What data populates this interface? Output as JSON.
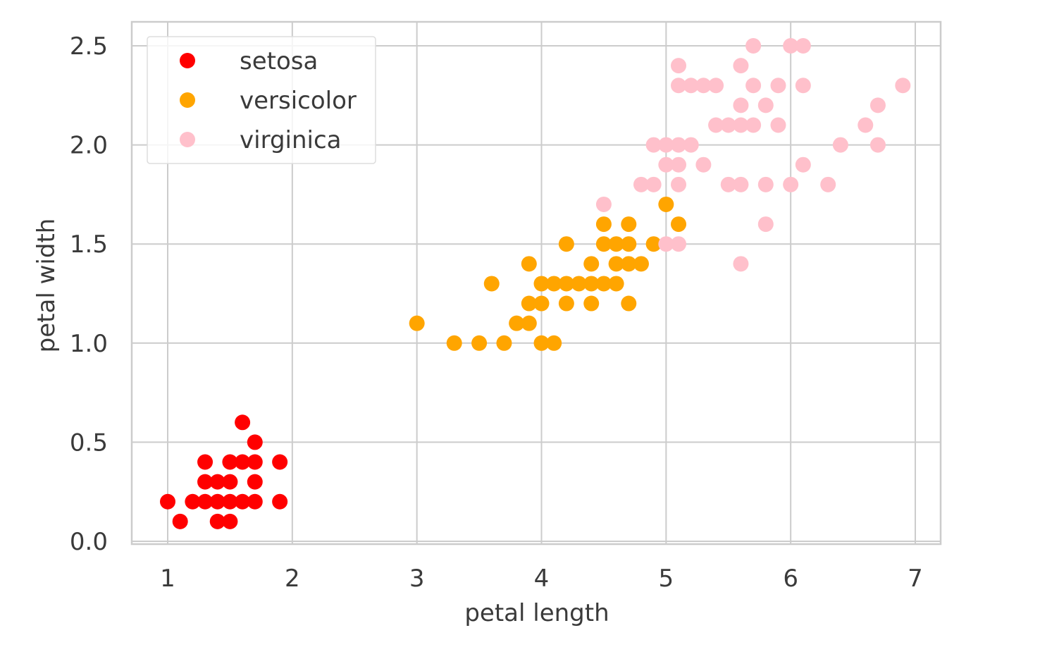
{
  "chart_data": {
    "type": "scatter",
    "title": "",
    "xlabel": "petal length",
    "ylabel": "petal width",
    "xlim": [
      0.7,
      7.2
    ],
    "ylim": [
      0.0,
      2.6
    ],
    "xticks": [
      1,
      2,
      3,
      4,
      5,
      6,
      7
    ],
    "yticks": [
      0.0,
      0.5,
      1.0,
      1.5,
      2.0,
      2.5
    ],
    "xtick_labels": [
      "1",
      "2",
      "3",
      "4",
      "5",
      "6",
      "7"
    ],
    "ytick_labels": [
      "0.0",
      "0.5",
      "1.0",
      "1.5",
      "2.0",
      "2.5"
    ],
    "grid": true,
    "legend_position": "top-left",
    "series": [
      {
        "name": "setosa",
        "color": "#ff0000",
        "points": [
          [
            1.0,
            0.2
          ],
          [
            1.1,
            0.1
          ],
          [
            1.2,
            0.2
          ],
          [
            1.3,
            0.2
          ],
          [
            1.3,
            0.3
          ],
          [
            1.3,
            0.4
          ],
          [
            1.4,
            0.1
          ],
          [
            1.4,
            0.2
          ],
          [
            1.4,
            0.3
          ],
          [
            1.5,
            0.1
          ],
          [
            1.5,
            0.2
          ],
          [
            1.5,
            0.3
          ],
          [
            1.5,
            0.4
          ],
          [
            1.6,
            0.2
          ],
          [
            1.6,
            0.4
          ],
          [
            1.6,
            0.6
          ],
          [
            1.7,
            0.2
          ],
          [
            1.7,
            0.3
          ],
          [
            1.7,
            0.4
          ],
          [
            1.7,
            0.5
          ],
          [
            1.9,
            0.2
          ],
          [
            1.9,
            0.4
          ]
        ]
      },
      {
        "name": "versicolor",
        "color": "#ffa500",
        "points": [
          [
            3.0,
            1.1
          ],
          [
            3.3,
            1.0
          ],
          [
            3.5,
            1.0
          ],
          [
            3.6,
            1.3
          ],
          [
            3.7,
            1.0
          ],
          [
            3.8,
            1.1
          ],
          [
            3.9,
            1.1
          ],
          [
            3.9,
            1.2
          ],
          [
            3.9,
            1.4
          ],
          [
            4.0,
            1.0
          ],
          [
            4.0,
            1.2
          ],
          [
            4.0,
            1.3
          ],
          [
            4.1,
            1.0
          ],
          [
            4.1,
            1.3
          ],
          [
            4.2,
            1.2
          ],
          [
            4.2,
            1.3
          ],
          [
            4.2,
            1.5
          ],
          [
            4.3,
            1.3
          ],
          [
            4.4,
            1.2
          ],
          [
            4.4,
            1.3
          ],
          [
            4.4,
            1.4
          ],
          [
            4.5,
            1.3
          ],
          [
            4.5,
            1.5
          ],
          [
            4.5,
            1.6
          ],
          [
            4.6,
            1.3
          ],
          [
            4.6,
            1.4
          ],
          [
            4.6,
            1.5
          ],
          [
            4.7,
            1.2
          ],
          [
            4.7,
            1.4
          ],
          [
            4.7,
            1.5
          ],
          [
            4.7,
            1.6
          ],
          [
            4.8,
            1.4
          ],
          [
            4.9,
            1.5
          ],
          [
            5.0,
            1.7
          ],
          [
            5.1,
            1.6
          ]
        ]
      },
      {
        "name": "virginica",
        "color": "#ffc0cb",
        "points": [
          [
            4.5,
            1.7
          ],
          [
            4.8,
            1.8
          ],
          [
            4.9,
            1.8
          ],
          [
            4.9,
            2.0
          ],
          [
            5.0,
            1.5
          ],
          [
            5.0,
            1.9
          ],
          [
            5.0,
            2.0
          ],
          [
            5.1,
            1.5
          ],
          [
            5.1,
            1.8
          ],
          [
            5.1,
            1.9
          ],
          [
            5.1,
            2.0
          ],
          [
            5.1,
            2.3
          ],
          [
            5.1,
            2.4
          ],
          [
            5.2,
            2.0
          ],
          [
            5.2,
            2.3
          ],
          [
            5.3,
            1.9
          ],
          [
            5.3,
            2.3
          ],
          [
            5.4,
            2.1
          ],
          [
            5.4,
            2.3
          ],
          [
            5.5,
            1.8
          ],
          [
            5.5,
            2.1
          ],
          [
            5.6,
            1.4
          ],
          [
            5.6,
            1.8
          ],
          [
            5.6,
            2.1
          ],
          [
            5.6,
            2.2
          ],
          [
            5.6,
            2.4
          ],
          [
            5.7,
            2.1
          ],
          [
            5.7,
            2.3
          ],
          [
            5.7,
            2.5
          ],
          [
            5.8,
            1.6
          ],
          [
            5.8,
            1.8
          ],
          [
            5.8,
            2.2
          ],
          [
            5.9,
            2.1
          ],
          [
            5.9,
            2.3
          ],
          [
            6.0,
            1.8
          ],
          [
            6.0,
            2.5
          ],
          [
            6.1,
            1.9
          ],
          [
            6.1,
            2.3
          ],
          [
            6.1,
            2.5
          ],
          [
            6.3,
            1.8
          ],
          [
            6.4,
            2.0
          ],
          [
            6.6,
            2.1
          ],
          [
            6.7,
            2.0
          ],
          [
            6.7,
            2.2
          ],
          [
            6.9,
            2.3
          ]
        ]
      }
    ]
  }
}
